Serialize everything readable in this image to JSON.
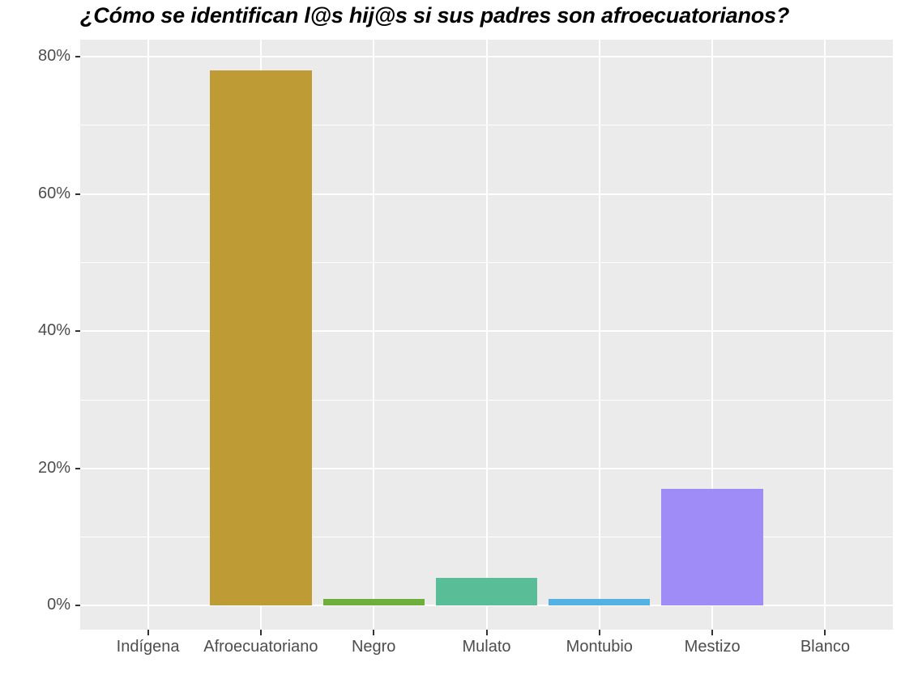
{
  "chart_data": {
    "type": "bar",
    "title": "¿Cómo se identifican l@s hij@s si sus padres son afroecuatorianos?",
    "xlabel": "",
    "ylabel": "",
    "categories": [
      "Indígena",
      "Afroecuatoriano",
      "Negro",
      "Mulato",
      "Montubio",
      "Mestizo",
      "Blanco"
    ],
    "values": [
      0,
      78,
      1,
      4,
      1,
      17,
      0
    ],
    "colors": [
      "#F8766D",
      "#BF9B36",
      "#6DAF3A",
      "#59BE98",
      "#53B1E3",
      "#A08CF6",
      "#F564E3"
    ],
    "ylim": [
      -3.5,
      82.5
    ],
    "yticks": [
      0,
      20,
      40,
      60,
      80
    ],
    "ytick_labels": [
      "0%",
      "20%",
      "40%",
      "60%",
      "80%"
    ],
    "grid": true,
    "legend": "none",
    "panel_background": "#EBEBEB"
  }
}
